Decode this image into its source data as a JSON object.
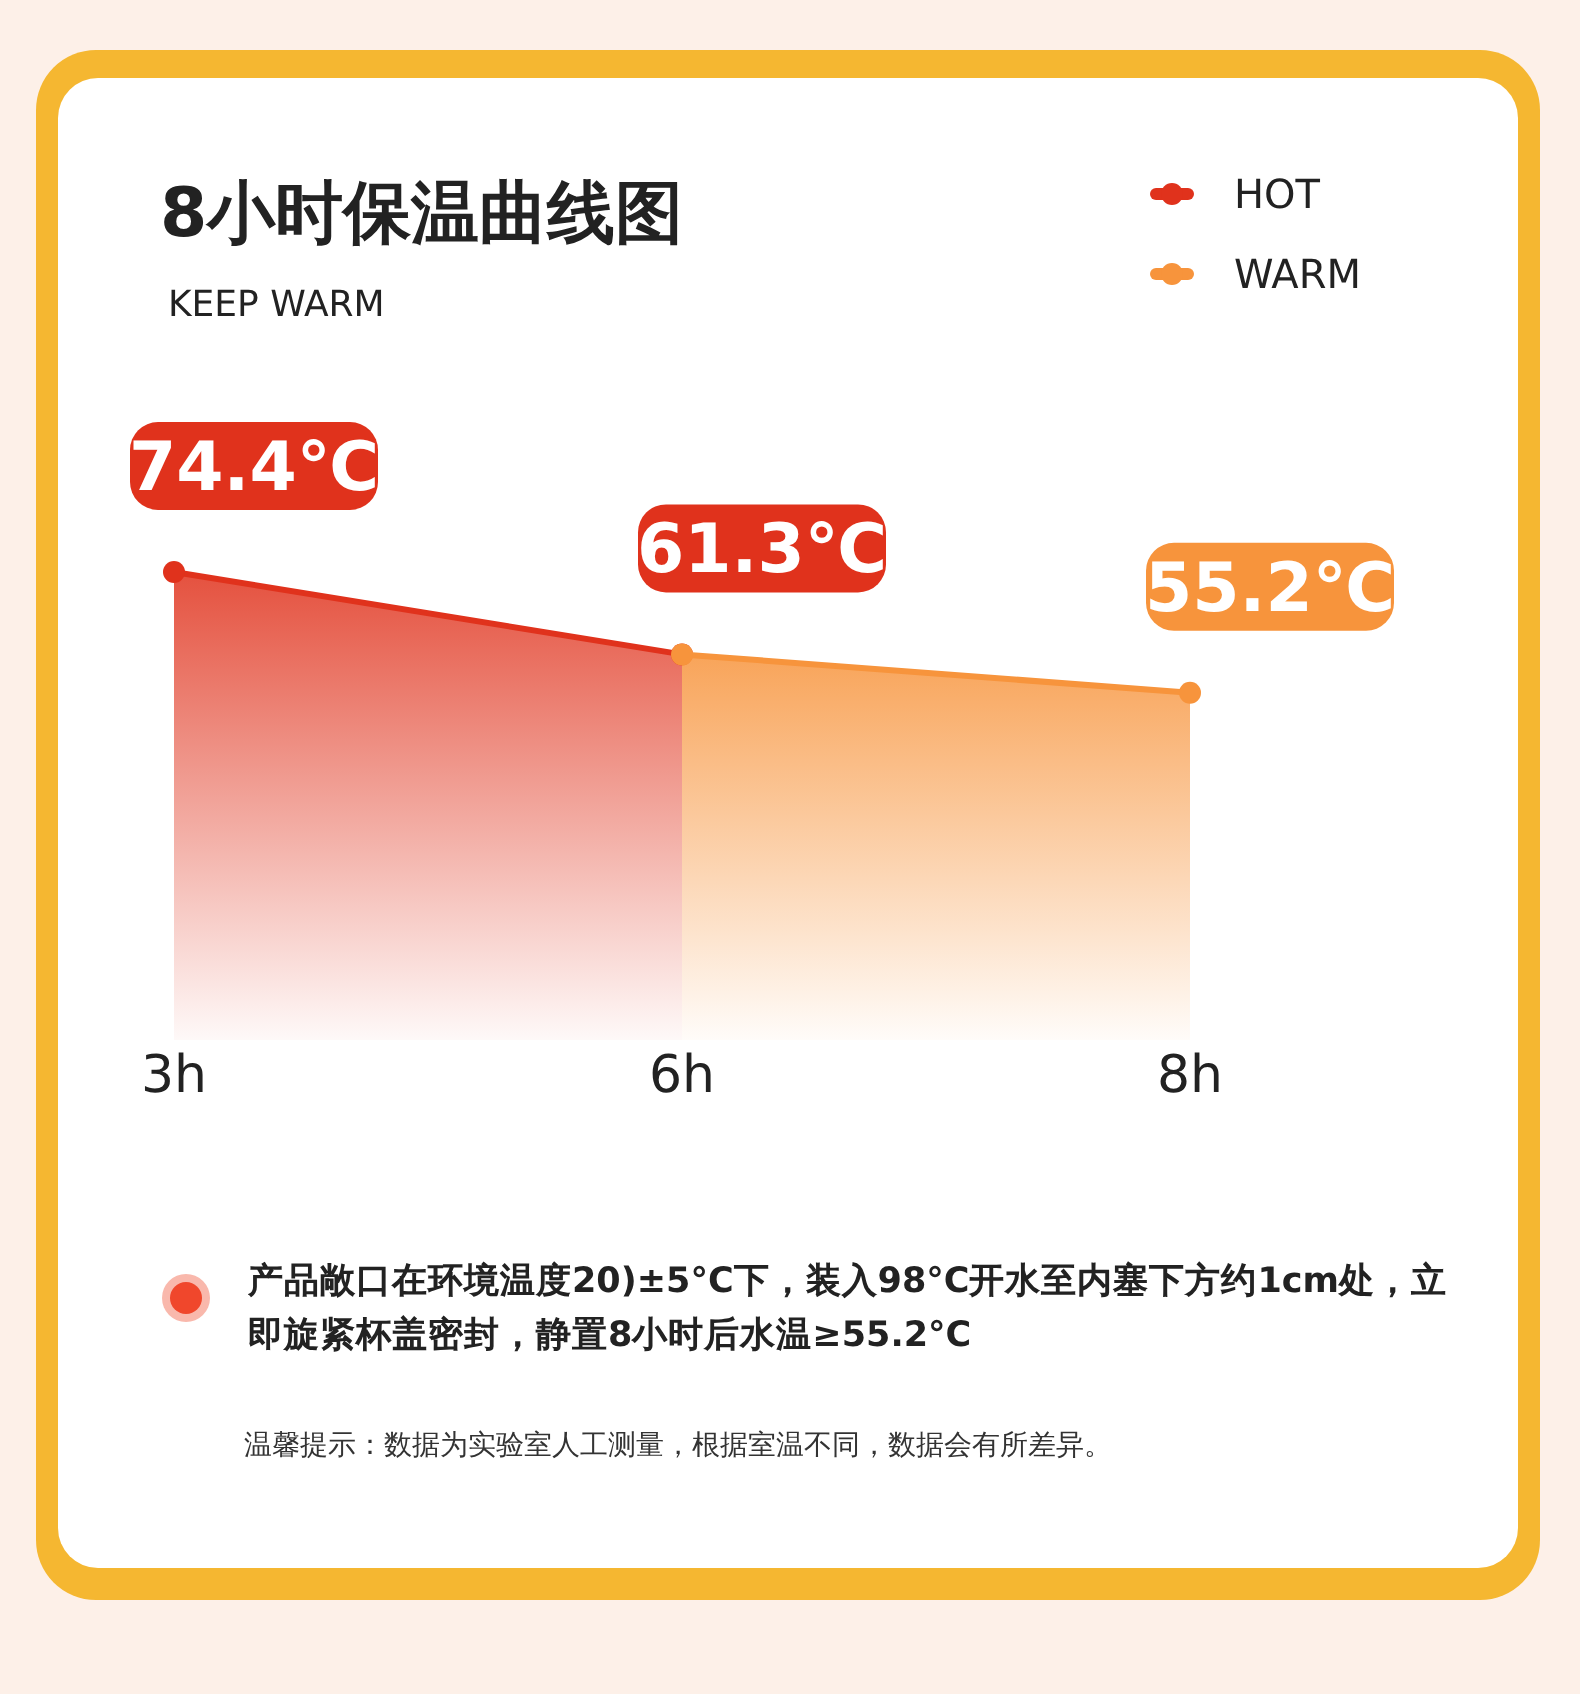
{
  "chart_data": {
    "type": "area",
    "title": "8小时保温曲线图",
    "subtitle": "KEEP WARM",
    "categories": [
      "3h",
      "6h",
      "8h"
    ],
    "series": [
      {
        "name": "HOT",
        "color": "#e0321c",
        "values": [
          74.4,
          61.3,
          null
        ],
        "value_labels": [
          "74.4℃",
          "61.3℃",
          null
        ]
      },
      {
        "name": "WARM",
        "color": "#f7943c",
        "values": [
          null,
          61.3,
          55.2
        ],
        "value_labels": [
          null,
          null,
          "55.2℃"
        ]
      }
    ],
    "marker": "circle",
    "legend": "top right",
    "annotations": [
      "产品敞口在环境温度20)±5°C下，装入98°C开水至内塞下方约1cm处，立即旋紧杯盖密封，静置8小时后水温≥55.2°C",
      "温馨提示：数据为实验室人工测量，根据室温不同，数据会有所差异。"
    ]
  }
}
